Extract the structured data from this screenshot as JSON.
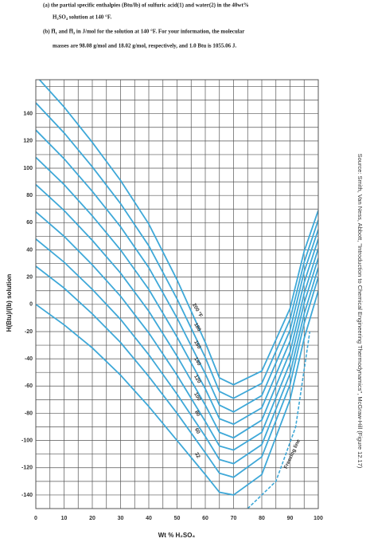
{
  "question": {
    "lines": [
      "(a) the partial specific enthalpies (Btu/lb) of sulfuric acid(1) and water(2) in the 40wt%",
      "H₂SO₄ solution at 140 °F.",
      "(b) H̄₁ and H̄₂ in J/mol for the solution at 140 °F. For your information, the molecular",
      "masses are 98.08 g/mol and 18.02 g/mol, respectively, and 1.0 Btu is 1055.06 J."
    ]
  },
  "chart_data": {
    "type": "line",
    "y_label": "H(Btu)/(lb) solution",
    "x_label": "Wt % H₂SO₄",
    "source": "Source: Smith, Van Ness, Abbott, \"Introduction to Chemical Engineering Thermodynamics\", McGraw-Hill (Figure 12.17)",
    "x": [
      0,
      10,
      20,
      30,
      40,
      50,
      60,
      65,
      70,
      80,
      90,
      95,
      100
    ],
    "xlim": [
      0,
      100
    ],
    "ylim": [
      -150,
      165
    ],
    "xticks": [
      0,
      10,
      20,
      30,
      40,
      50,
      60,
      70,
      80,
      90,
      100
    ],
    "yticks": [
      -140,
      -120,
      -100,
      -80,
      -60,
      -40,
      -20,
      0,
      20,
      40,
      60,
      80,
      100,
      120,
      140
    ],
    "xgrid": [
      0,
      5,
      10,
      15,
      20,
      25,
      30,
      35,
      40,
      45,
      50,
      55,
      60,
      65,
      70,
      75,
      80,
      85,
      90,
      95,
      100
    ],
    "ygrid": [
      -150,
      -140,
      -130,
      -120,
      -110,
      -100,
      -90,
      -80,
      -70,
      -60,
      -50,
      -40,
      -30,
      -20,
      -10,
      0,
      10,
      20,
      30,
      40,
      50,
      60,
      70,
      80,
      90,
      100,
      110,
      120,
      130,
      140,
      150,
      160
    ],
    "grid": true,
    "grid_color": "#555555",
    "series": [
      {
        "name": "32",
        "color": "#3ea8d8",
        "values": [
          0,
          -15,
          -32,
          -52,
          -75,
          -100,
          -125,
          -138,
          -140,
          -125,
          -70,
          -25,
          10
        ]
      },
      {
        "name": "60",
        "color": "#3ea8d8",
        "values": [
          28,
          12,
          -7,
          -28,
          -53,
          -80,
          -109,
          -124,
          -127,
          -112,
          -59,
          -14,
          20
        ]
      },
      {
        "name": "80",
        "color": "#3ea8d8",
        "values": [
          48,
          31,
          11,
          -11,
          -37,
          -66,
          -97,
          -114,
          -117,
          -103,
          -51,
          -7,
          27
        ]
      },
      {
        "name": "100",
        "color": "#3ea8d8",
        "values": [
          68,
          50,
          29,
          6,
          -21,
          -52,
          -86,
          -104,
          -107,
          -94,
          -43,
          1,
          34
        ]
      },
      {
        "name": "120",
        "color": "#3ea8d8",
        "values": [
          88,
          69,
          47,
          23,
          -5,
          -38,
          -74,
          -94,
          -98,
          -85,
          -35,
          8,
          41
        ]
      },
      {
        "name": "140",
        "color": "#3ea8d8",
        "values": [
          108,
          88,
          65,
          40,
          11,
          -24,
          -62,
          -84,
          -88,
          -76,
          -27,
          16,
          48
        ]
      },
      {
        "name": "160",
        "color": "#3ea8d8",
        "values": [
          128,
          107,
          83,
          57,
          27,
          -10,
          -51,
          -74,
          -79,
          -67,
          -19,
          24,
          55
        ]
      },
      {
        "name": "180",
        "color": "#3ea8d8",
        "values": [
          148,
          126,
          101,
          74,
          43,
          4,
          -39,
          -64,
          -69,
          -58,
          -11,
          31,
          62
        ]
      },
      {
        "name": "200 °F",
        "color": "#3ea8d8",
        "values": [
          168,
          145,
          119,
          91,
          59,
          18,
          -28,
          -54,
          -59,
          -49,
          -3,
          39,
          69
        ]
      }
    ],
    "freezing_line": {
      "label": "Freezing line",
      "color": "#3ea8d8",
      "x": [
        75,
        85,
        92,
        97
      ],
      "values": [
        -150,
        -130,
        -90,
        -20
      ]
    }
  }
}
